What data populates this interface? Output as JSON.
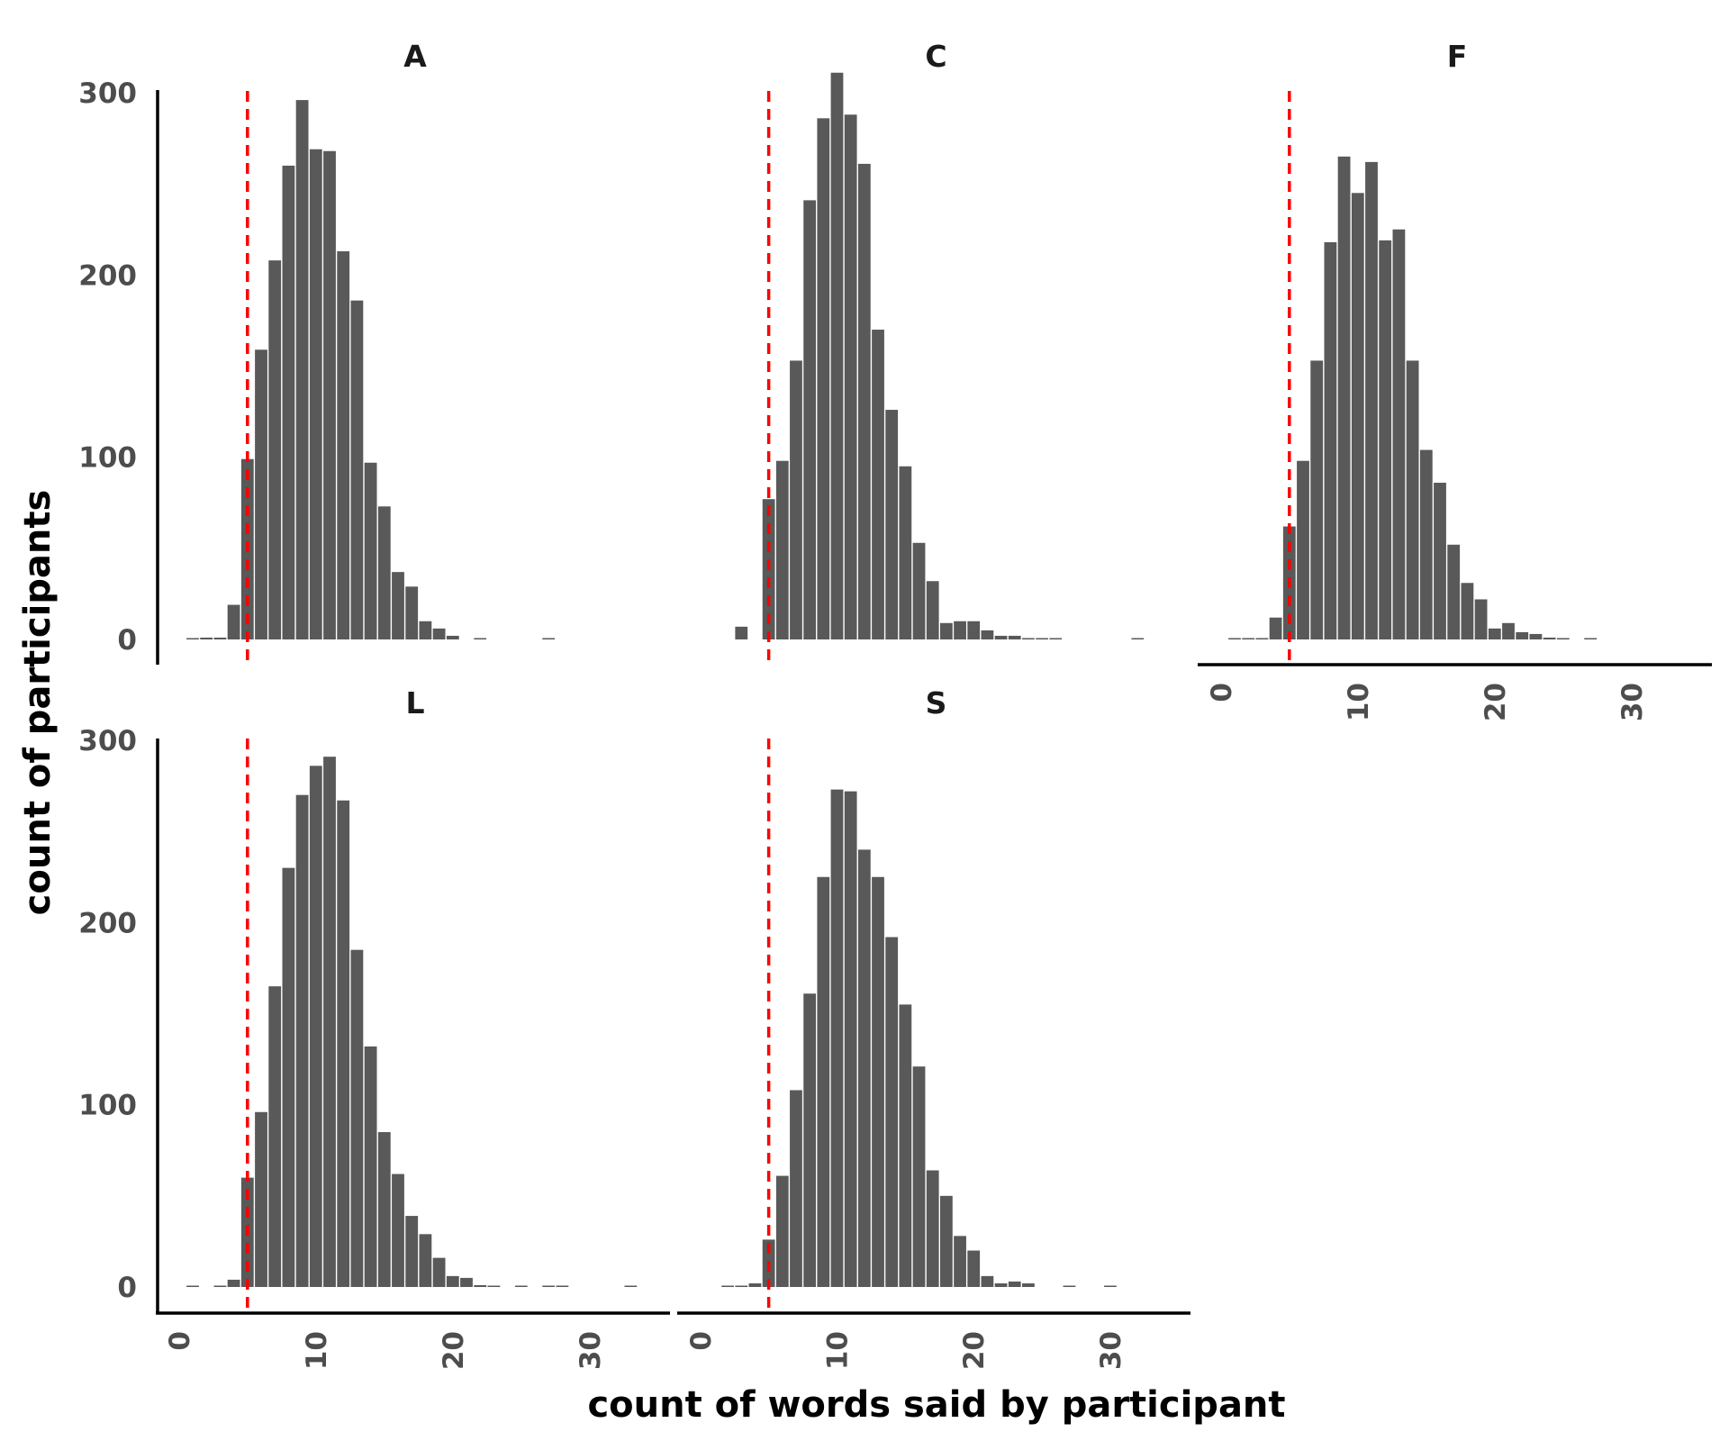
{
  "chart_data": {
    "type": "bar",
    "xlabel": "count of words said by participant",
    "ylabel": "count of participants",
    "xlim": [
      -1.5,
      36
    ],
    "ylim": [
      0,
      300
    ],
    "x_ticks": [
      0,
      10,
      20,
      30
    ],
    "x_tick_labels": [
      "0",
      "10",
      "20",
      "30"
    ],
    "y_ticks": [
      0,
      100,
      200,
      300
    ],
    "y_tick_labels": [
      "0",
      "100",
      "200",
      "300"
    ],
    "bar_color": "#595959",
    "reference_line": {
      "x": 5,
      "color": "#ff0000",
      "style": "dashed"
    },
    "panels": [
      {
        "label": "A",
        "bins": [
          {
            "x": 1,
            "y": 0.5
          },
          {
            "x": 2,
            "y": 1
          },
          {
            "x": 3,
            "y": 1
          },
          {
            "x": 4,
            "y": 19
          },
          {
            "x": 5,
            "y": 99
          },
          {
            "x": 6,
            "y": 159
          },
          {
            "x": 7,
            "y": 208
          },
          {
            "x": 8,
            "y": 260
          },
          {
            "x": 9,
            "y": 296
          },
          {
            "x": 10,
            "y": 269
          },
          {
            "x": 11,
            "y": 268
          },
          {
            "x": 12,
            "y": 213
          },
          {
            "x": 13,
            "y": 186
          },
          {
            "x": 14,
            "y": 97
          },
          {
            "x": 15,
            "y": 73
          },
          {
            "x": 16,
            "y": 37
          },
          {
            "x": 17,
            "y": 29
          },
          {
            "x": 18,
            "y": 10
          },
          {
            "x": 19,
            "y": 6
          },
          {
            "x": 20,
            "y": 2
          },
          {
            "x": 22,
            "y": 0.5
          },
          {
            "x": 27,
            "y": 0.5
          }
        ]
      },
      {
        "label": "C",
        "bins": [
          {
            "x": 3,
            "y": 7
          },
          {
            "x": 5,
            "y": 77
          },
          {
            "x": 6,
            "y": 98
          },
          {
            "x": 7,
            "y": 153
          },
          {
            "x": 8,
            "y": 241
          },
          {
            "x": 9,
            "y": 286
          },
          {
            "x": 10,
            "y": 311
          },
          {
            "x": 11,
            "y": 288
          },
          {
            "x": 12,
            "y": 261
          },
          {
            "x": 13,
            "y": 170
          },
          {
            "x": 14,
            "y": 126
          },
          {
            "x": 15,
            "y": 95
          },
          {
            "x": 16,
            "y": 53
          },
          {
            "x": 17,
            "y": 32
          },
          {
            "x": 18,
            "y": 9
          },
          {
            "x": 19,
            "y": 10
          },
          {
            "x": 20,
            "y": 10
          },
          {
            "x": 21,
            "y": 5
          },
          {
            "x": 22,
            "y": 2
          },
          {
            "x": 23,
            "y": 2
          },
          {
            "x": 24,
            "y": 0.5
          },
          {
            "x": 25,
            "y": 0.5
          },
          {
            "x": 26,
            "y": 0.5
          },
          {
            "x": 32,
            "y": 0.5
          }
        ]
      },
      {
        "label": "F",
        "bins": [
          {
            "x": 1,
            "y": 0.5
          },
          {
            "x": 2,
            "y": 0.5
          },
          {
            "x": 3,
            "y": 0.5
          },
          {
            "x": 4,
            "y": 12
          },
          {
            "x": 5,
            "y": 62
          },
          {
            "x": 6,
            "y": 98
          },
          {
            "x": 7,
            "y": 153
          },
          {
            "x": 8,
            "y": 218
          },
          {
            "x": 9,
            "y": 265
          },
          {
            "x": 10,
            "y": 245
          },
          {
            "x": 11,
            "y": 262
          },
          {
            "x": 12,
            "y": 219
          },
          {
            "x": 13,
            "y": 225
          },
          {
            "x": 14,
            "y": 153
          },
          {
            "x": 15,
            "y": 104
          },
          {
            "x": 16,
            "y": 86
          },
          {
            "x": 17,
            "y": 52
          },
          {
            "x": 18,
            "y": 31
          },
          {
            "x": 19,
            "y": 22
          },
          {
            "x": 20,
            "y": 6
          },
          {
            "x": 21,
            "y": 9
          },
          {
            "x": 22,
            "y": 4
          },
          {
            "x": 23,
            "y": 3
          },
          {
            "x": 24,
            "y": 1
          },
          {
            "x": 25,
            "y": 0.5
          },
          {
            "x": 27,
            "y": 0.5
          }
        ]
      },
      {
        "label": "L",
        "bins": [
          {
            "x": 1,
            "y": 0.5
          },
          {
            "x": 3,
            "y": 0.5
          },
          {
            "x": 4,
            "y": 4
          },
          {
            "x": 5,
            "y": 60
          },
          {
            "x": 6,
            "y": 96
          },
          {
            "x": 7,
            "y": 165
          },
          {
            "x": 8,
            "y": 230
          },
          {
            "x": 9,
            "y": 270
          },
          {
            "x": 10,
            "y": 286
          },
          {
            "x": 11,
            "y": 291
          },
          {
            "x": 12,
            "y": 267
          },
          {
            "x": 13,
            "y": 185
          },
          {
            "x": 14,
            "y": 132
          },
          {
            "x": 15,
            "y": 85
          },
          {
            "x": 16,
            "y": 62
          },
          {
            "x": 17,
            "y": 39
          },
          {
            "x": 18,
            "y": 29
          },
          {
            "x": 19,
            "y": 16
          },
          {
            "x": 20,
            "y": 6
          },
          {
            "x": 21,
            "y": 5
          },
          {
            "x": 22,
            "y": 1
          },
          {
            "x": 23,
            "y": 0.5
          },
          {
            "x": 25,
            "y": 0.5
          },
          {
            "x": 27,
            "y": 0.5
          },
          {
            "x": 28,
            "y": 0.5
          },
          {
            "x": 33,
            "y": 0.5
          }
        ]
      },
      {
        "label": "S",
        "bins": [
          {
            "x": 2,
            "y": 0.5
          },
          {
            "x": 3,
            "y": 0.5
          },
          {
            "x": 4,
            "y": 2
          },
          {
            "x": 5,
            "y": 26
          },
          {
            "x": 6,
            "y": 61
          },
          {
            "x": 7,
            "y": 108
          },
          {
            "x": 8,
            "y": 161
          },
          {
            "x": 9,
            "y": 225
          },
          {
            "x": 10,
            "y": 273
          },
          {
            "x": 11,
            "y": 272
          },
          {
            "x": 12,
            "y": 240
          },
          {
            "x": 13,
            "y": 225
          },
          {
            "x": 14,
            "y": 192
          },
          {
            "x": 15,
            "y": 155
          },
          {
            "x": 16,
            "y": 121
          },
          {
            "x": 17,
            "y": 64
          },
          {
            "x": 18,
            "y": 50
          },
          {
            "x": 19,
            "y": 28
          },
          {
            "x": 20,
            "y": 20
          },
          {
            "x": 21,
            "y": 6
          },
          {
            "x": 22,
            "y": 2
          },
          {
            "x": 23,
            "y": 3
          },
          {
            "x": 24,
            "y": 2
          },
          {
            "x": 27,
            "y": 0.5
          },
          {
            "x": 30,
            "y": 0.5
          }
        ]
      }
    ]
  }
}
